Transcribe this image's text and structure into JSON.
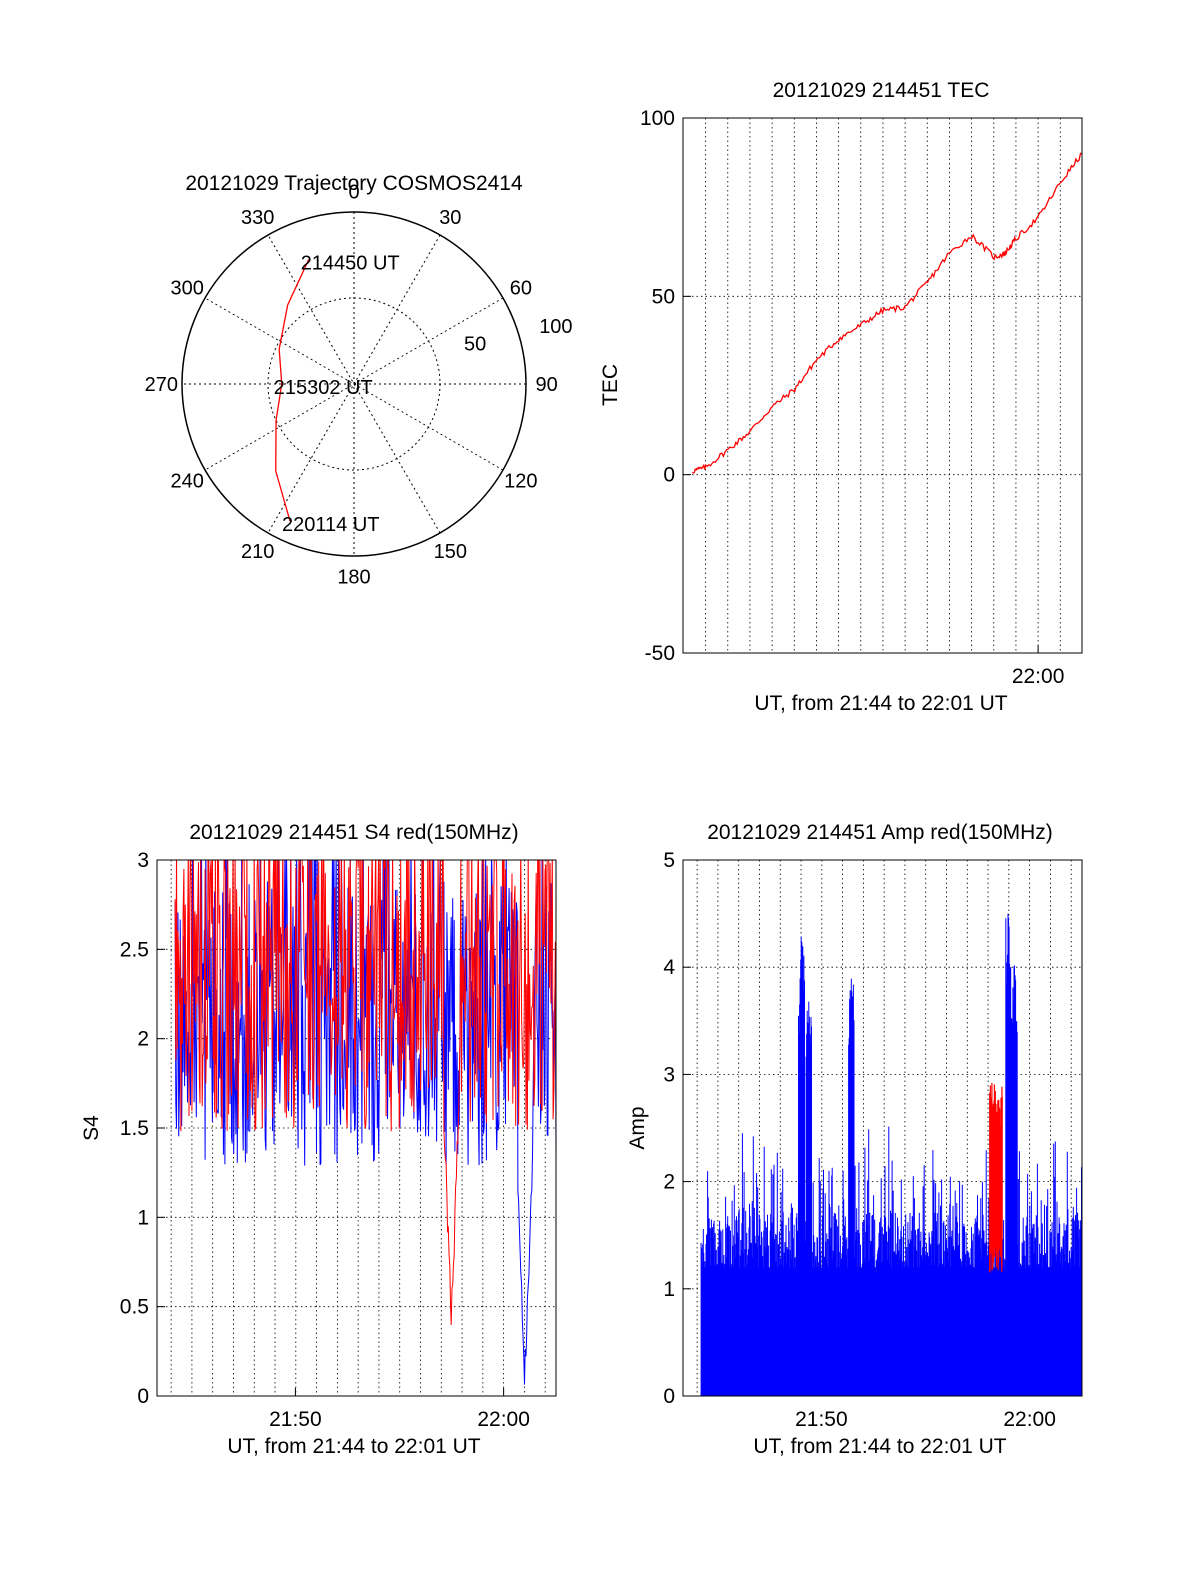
{
  "colors": {
    "red": "#ff0000",
    "blue": "#0000ff",
    "axis": "#000000",
    "grid": "#000000"
  },
  "chart_data": [
    {
      "id": "trajectory",
      "type": "polar",
      "title": "20121029 Trajectory COSMOS2414",
      "angle_labels": [
        "0",
        "30",
        "60",
        "90",
        "120",
        "150",
        "180",
        "210",
        "240",
        "270",
        "300",
        "330"
      ],
      "radial_labels": [
        "50",
        "100"
      ],
      "radial_range": [
        0,
        100
      ],
      "grid": true,
      "trajectory": {
        "color": "red",
        "points": [
          {
            "az": 340,
            "r": 77
          },
          {
            "az": 320,
            "r": 60
          },
          {
            "az": 295,
            "r": 48
          },
          {
            "az": 270,
            "r": 42
          },
          {
            "az": 245,
            "r": 50
          },
          {
            "az": 222,
            "r": 68
          },
          {
            "az": 205,
            "r": 88
          }
        ],
        "annotations": [
          {
            "text": "214450 UT",
            "az": 340,
            "r": 77
          },
          {
            "text": "215302 UT",
            "az": 270,
            "r": 42
          },
          {
            "text": "220114 UT",
            "az": 205,
            "r": 88
          }
        ]
      }
    },
    {
      "id": "tec",
      "type": "line",
      "title": "20121029 214451 TEC",
      "xlabel": "UT, from 21:44 to 22:01 UT",
      "ylabel": "TEC",
      "xlim": [
        21.733,
        22.033
      ],
      "ylim": [
        -50,
        100
      ],
      "yticks": [
        "-50",
        "0",
        "50",
        "100"
      ],
      "xticks": [
        {
          "v": 22.0,
          "label": "22:00"
        }
      ],
      "grid": true,
      "series": [
        {
          "color": "red",
          "x": [
            21.74,
            21.75,
            21.767,
            21.783,
            21.8,
            21.817,
            21.833,
            21.85,
            21.867,
            21.883,
            21.9,
            21.917,
            21.933,
            21.95,
            21.967,
            21.975,
            21.983,
            22.0,
            22.017,
            22.033
          ],
          "y": [
            1,
            2,
            7,
            12,
            19,
            24,
            32,
            38,
            42,
            46,
            47,
            54,
            62,
            67,
            61,
            62,
            66,
            72,
            82,
            90
          ]
        }
      ]
    },
    {
      "id": "s4",
      "type": "line",
      "title": "20121029 214451 S4 red(150MHz)",
      "xlabel": "UT, from 21:44 to 22:01 UT",
      "ylabel": "S4",
      "xlim": [
        21.722,
        22.042
      ],
      "ylim": [
        0,
        3
      ],
      "yticks": [
        "0",
        "0.5",
        "1",
        "1.5",
        "2",
        "2.5",
        "3"
      ],
      "xticks": [
        {
          "v": 21.833,
          "label": "21:50"
        },
        {
          "v": 22.0,
          "label": "22:00"
        }
      ],
      "grid": true,
      "series": [
        {
          "name": "",
          "color": "red",
          "style": "noise",
          "level": 2.2,
          "spread": 0.8,
          "dip_at": 21.958,
          "dip_min": 0.3
        },
        {
          "name": "",
          "color": "blue",
          "style": "noise",
          "level": 2.0,
          "spread": 0.8,
          "dip_at": 22.017,
          "dip_min": 0.0
        }
      ]
    },
    {
      "id": "amp",
      "type": "bar",
      "title": "20121029 214451 Amp red(150MHz)",
      "xlabel": "UT, from 21:44 to 22:01 UT",
      "ylabel": "Amp",
      "xlim": [
        21.722,
        22.042
      ],
      "ylim": [
        0,
        5
      ],
      "yticks": [
        "0",
        "1",
        "2",
        "3",
        "4",
        "5"
      ],
      "xticks": [
        {
          "v": 21.833,
          "label": "21:50"
        },
        {
          "v": 22.0,
          "label": "22:00"
        }
      ],
      "grid": true,
      "series": [
        {
          "name": "",
          "color": "blue",
          "style": "spikes",
          "baseline": 1.3,
          "peaks": [
            {
              "x": 21.817,
              "v": 4.35
            },
            {
              "x": 21.823,
              "v": 3.7
            },
            {
              "x": 21.857,
              "v": 3.9
            },
            {
              "x": 21.983,
              "v": 4.5
            },
            {
              "x": 21.988,
              "v": 4.05
            }
          ]
        },
        {
          "name": "",
          "color": "red",
          "style": "band",
          "x": [
            21.968,
            21.978
          ],
          "vmin": 1.15,
          "vmax": 2.95
        }
      ]
    }
  ]
}
